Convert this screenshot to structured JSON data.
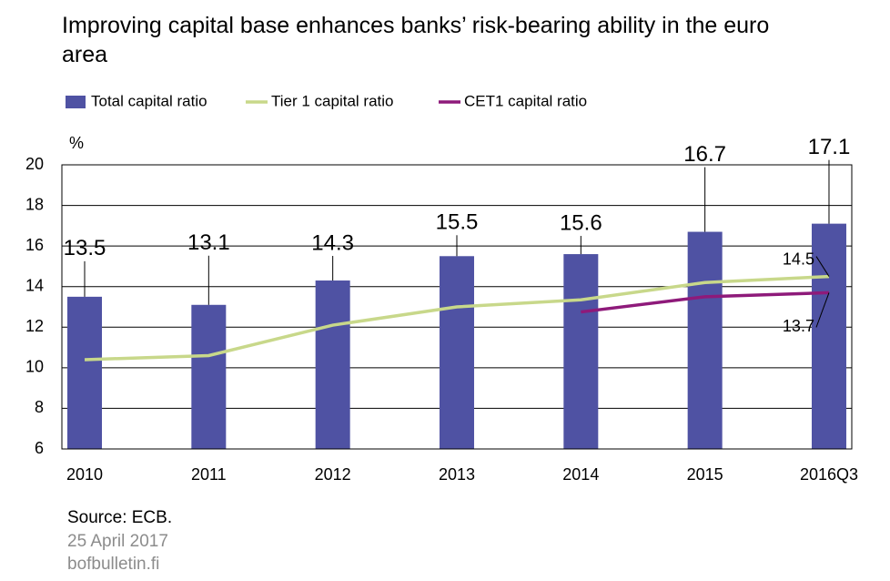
{
  "chart_data": {
    "type": "bar",
    "title": "Improving capital base enhances banks’ risk-bearing ability in the euro area",
    "y_label": "%",
    "categories": [
      "2010",
      "2011",
      "2012",
      "2013",
      "2014",
      "2015",
      "2016Q3"
    ],
    "series": [
      {
        "name": "Total capital ratio",
        "type": "bar",
        "color": "#4f52a3",
        "values": [
          13.5,
          13.1,
          14.3,
          15.5,
          15.6,
          16.7,
          17.1
        ]
      },
      {
        "name": "Tier 1 capital ratio",
        "type": "line",
        "color": "#c8d88a",
        "values": [
          10.4,
          10.6,
          12.1,
          13.0,
          13.35,
          14.2,
          14.5
        ]
      },
      {
        "name": "CET1 capital ratio",
        "type": "line",
        "color": "#8e1a7a",
        "values": [
          null,
          null,
          null,
          null,
          12.75,
          13.5,
          13.7
        ]
      }
    ],
    "ylim": [
      6,
      20
    ],
    "yticks": [
      6,
      8,
      10,
      12,
      14,
      16,
      18,
      20
    ],
    "grid": true,
    "source": "Source: ECB.",
    "date": "25 April 2017",
    "website": "bofbulletin.fi"
  }
}
